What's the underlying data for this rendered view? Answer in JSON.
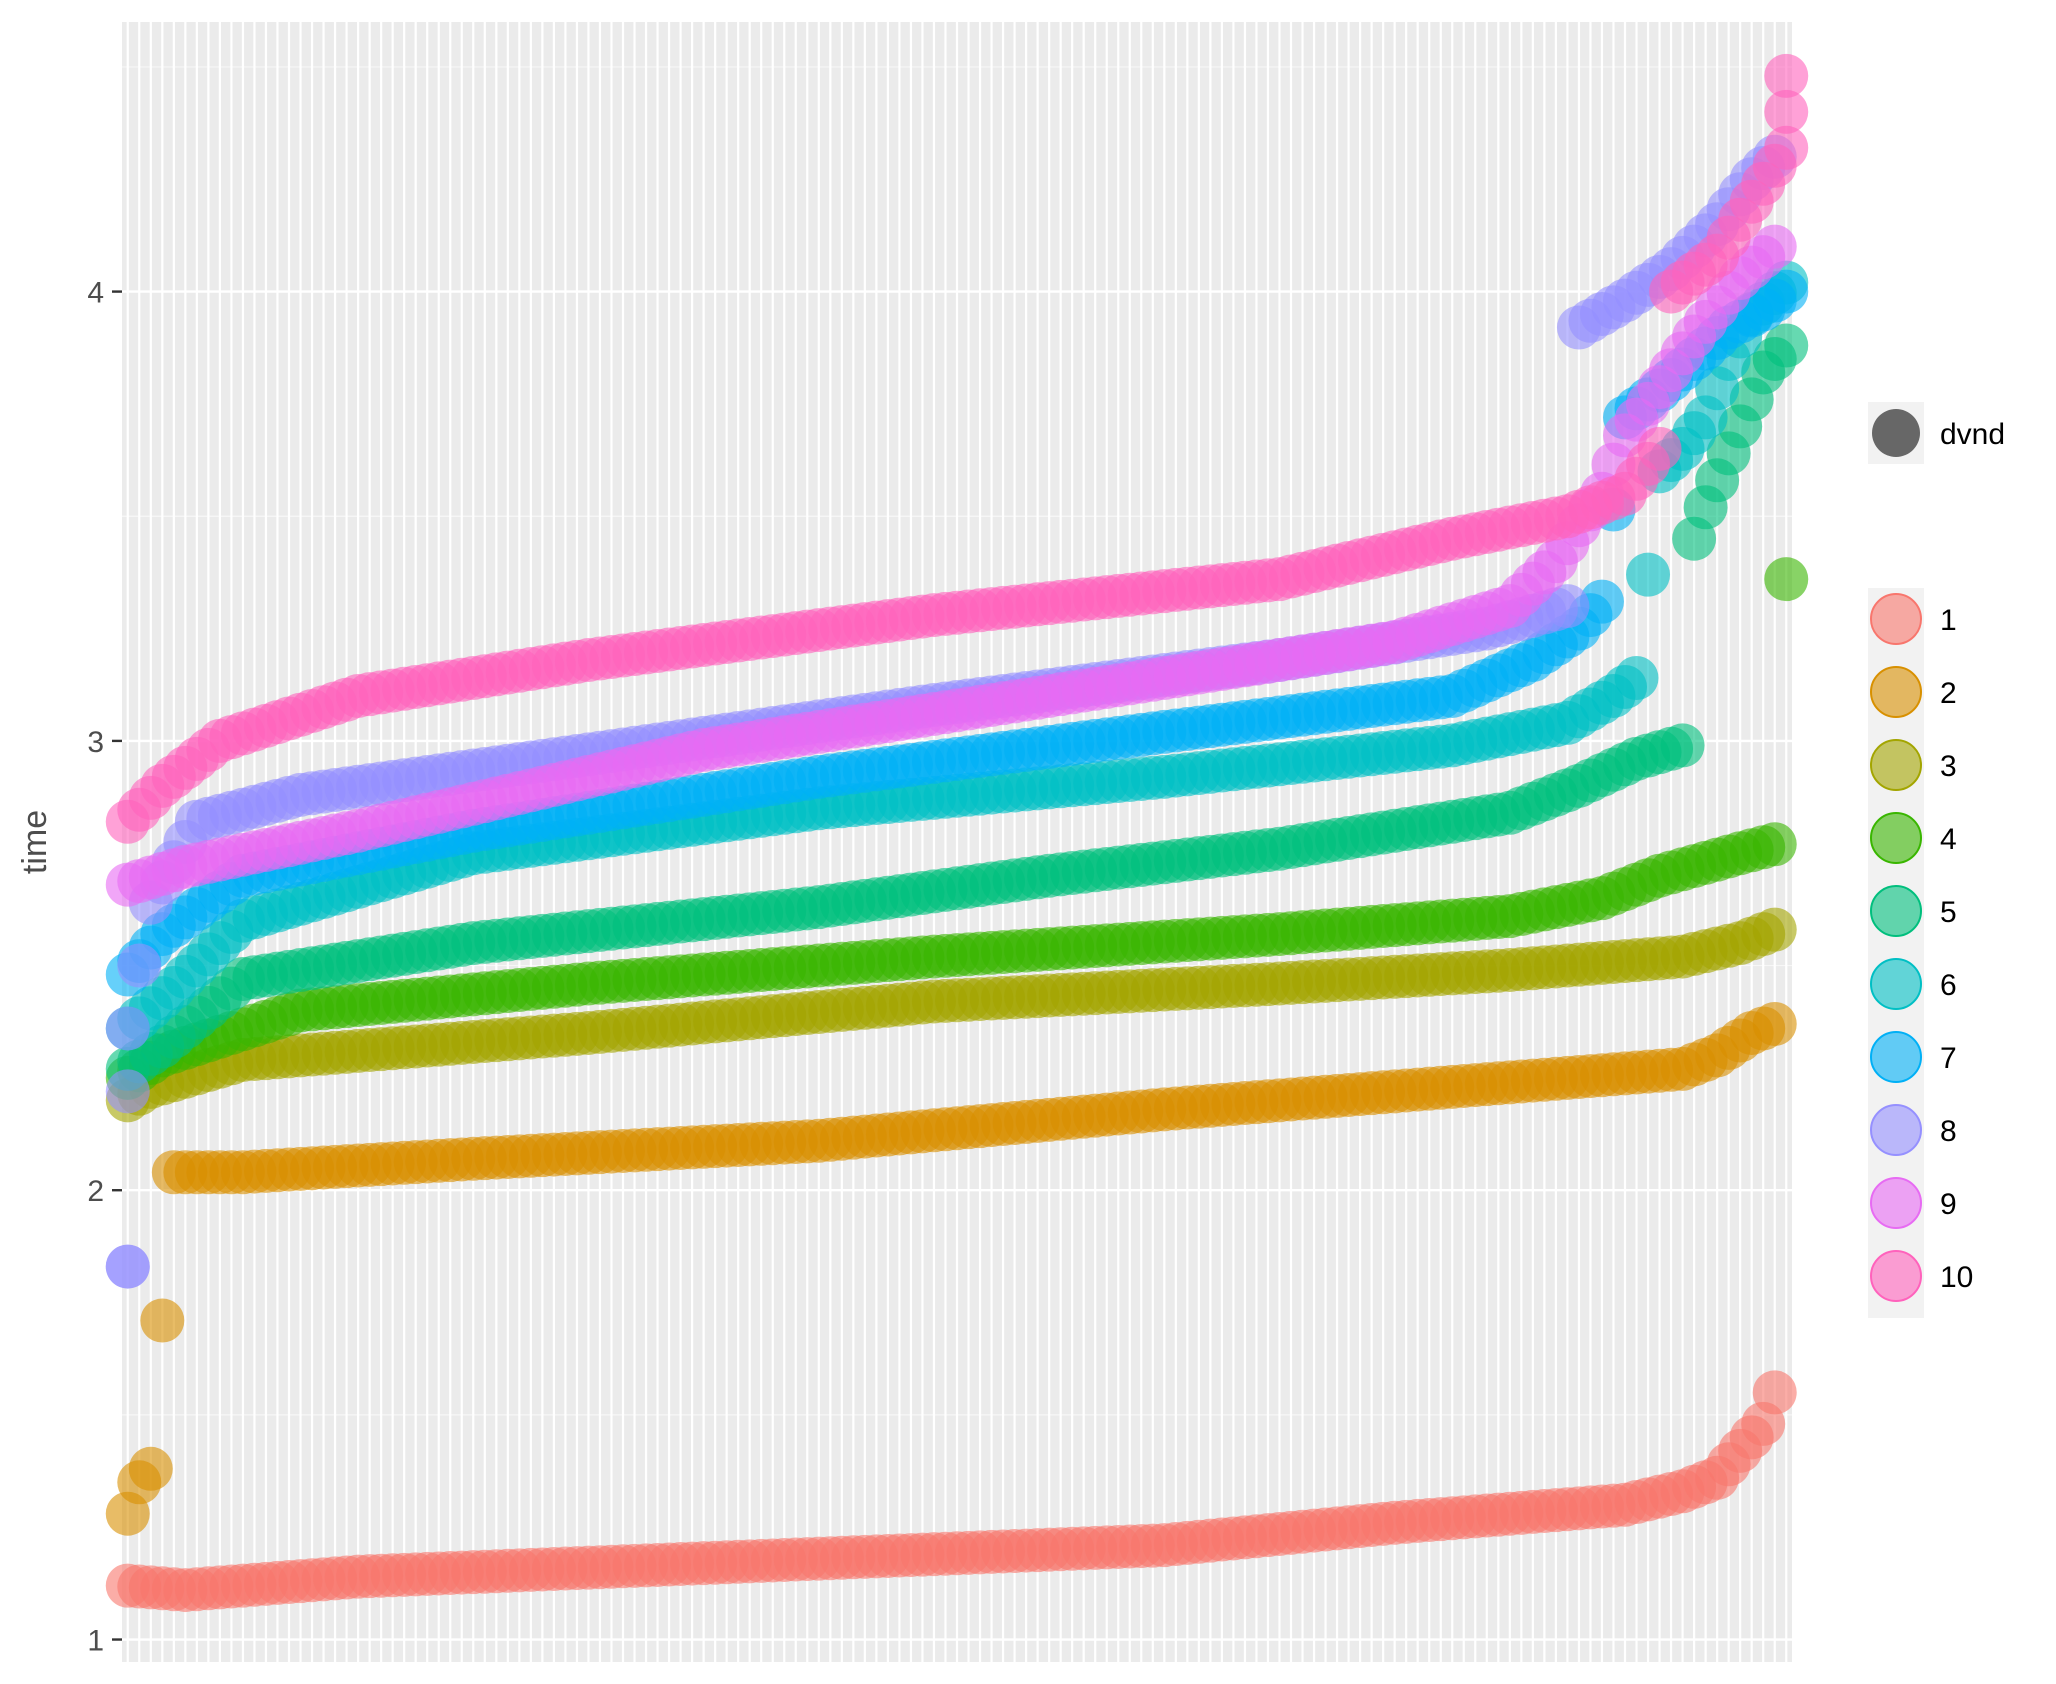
{
  "chart_data": {
    "type": "scatter",
    "title": "",
    "xlabel": "",
    "ylabel": "time",
    "x_count": 144,
    "ylim": [
      0.95,
      4.6
    ],
    "yticks": [
      1,
      2,
      3,
      4
    ],
    "grid": true,
    "legend_position": "right",
    "size_legend": {
      "label": "dvnd"
    },
    "series": [
      {
        "name": "1",
        "color": "#F8766D",
        "start": 0,
        "anchors": [
          [
            0,
            1.12
          ],
          [
            5,
            1.11
          ],
          [
            20,
            1.14
          ],
          [
            60,
            1.18
          ],
          [
            90,
            1.21
          ],
          [
            110,
            1.26
          ],
          [
            130,
            1.3
          ],
          [
            135,
            1.33
          ],
          [
            138,
            1.36
          ],
          [
            140,
            1.42
          ],
          [
            142,
            1.48
          ],
          [
            143,
            1.55
          ]
        ]
      },
      {
        "name": "2",
        "color": "#D89000",
        "start": 0,
        "anchors": [
          [
            0,
            1.28
          ],
          [
            1,
            1.35
          ],
          [
            2,
            1.38
          ],
          [
            4,
            2.04
          ],
          [
            10,
            2.04
          ],
          [
            30,
            2.07
          ],
          [
            60,
            2.11
          ],
          [
            90,
            2.18
          ],
          [
            120,
            2.24
          ],
          [
            135,
            2.27
          ],
          [
            138,
            2.3
          ],
          [
            141,
            2.35
          ],
          [
            143,
            2.37
          ]
        ]
      },
      {
        "name": "3",
        "color": "#A3A500",
        "start": 0,
        "anchors": [
          [
            0,
            2.2
          ],
          [
            2,
            2.23
          ],
          [
            10,
            2.29
          ],
          [
            40,
            2.35
          ],
          [
            70,
            2.42
          ],
          [
            100,
            2.46
          ],
          [
            120,
            2.49
          ],
          [
            135,
            2.52
          ],
          [
            140,
            2.55
          ],
          [
            143,
            2.58
          ]
        ]
      },
      {
        "name": "4",
        "color": "#39B600",
        "start": 0,
        "anchors": [
          [
            0,
            2.25
          ],
          [
            3,
            2.3
          ],
          [
            15,
            2.4
          ],
          [
            40,
            2.46
          ],
          [
            70,
            2.52
          ],
          [
            100,
            2.57
          ],
          [
            120,
            2.61
          ],
          [
            128,
            2.65
          ],
          [
            133,
            2.7
          ],
          [
            140,
            2.75
          ],
          [
            143,
            2.77
          ],
          [
            144,
            3.36
          ]
        ]
      },
      {
        "name": "5",
        "color": "#00BF7D",
        "start": 0,
        "anchors": [
          [
            0,
            2.27
          ],
          [
            3,
            2.32
          ],
          [
            10,
            2.47
          ],
          [
            30,
            2.55
          ],
          [
            60,
            2.63
          ],
          [
            80,
            2.7
          ],
          [
            100,
            2.76
          ],
          [
            120,
            2.84
          ],
          [
            126,
            2.9
          ],
          [
            131,
            2.96
          ],
          [
            135,
            2.99
          ],
          [
            136,
            3.45
          ],
          [
            137,
            3.52
          ],
          [
            138,
            3.58
          ],
          [
            140,
            3.7
          ],
          [
            142,
            3.82
          ],
          [
            144,
            3.88
          ]
        ]
      },
      {
        "name": "6",
        "color": "#00BFC4",
        "start": 0,
        "anchors": [
          [
            0,
            2.36
          ],
          [
            4,
            2.45
          ],
          [
            10,
            2.6
          ],
          [
            30,
            2.75
          ],
          [
            60,
            2.85
          ],
          [
            90,
            2.92
          ],
          [
            115,
            2.99
          ],
          [
            125,
            3.04
          ],
          [
            129,
            3.1
          ],
          [
            131,
            3.14
          ],
          [
            133,
            3.6
          ],
          [
            135,
            3.65
          ],
          [
            137,
            3.72
          ],
          [
            139,
            3.85
          ],
          [
            141,
            3.95
          ],
          [
            144,
            4.02
          ]
        ]
      },
      {
        "name": "7",
        "color": "#00B0F6",
        "start": 0,
        "anchors": [
          [
            0,
            2.48
          ],
          [
            3,
            2.57
          ],
          [
            10,
            2.7
          ],
          [
            30,
            2.8
          ],
          [
            60,
            2.92
          ],
          [
            90,
            3.02
          ],
          [
            115,
            3.1
          ],
          [
            122,
            3.18
          ],
          [
            126,
            3.25
          ],
          [
            128,
            3.31
          ],
          [
            130,
            3.72
          ],
          [
            133,
            3.78
          ],
          [
            136,
            3.85
          ],
          [
            139,
            3.92
          ],
          [
            142,
            3.96
          ],
          [
            144,
            4.0
          ]
        ]
      },
      {
        "name": "8",
        "color": "#9590FF",
        "start": 0,
        "anchors": [
          [
            0,
            1.83
          ],
          [
            0,
            2.22
          ],
          [
            0,
            2.36
          ],
          [
            2,
            2.64
          ],
          [
            6,
            2.82
          ],
          [
            15,
            2.88
          ],
          [
            40,
            2.97
          ],
          [
            70,
            3.08
          ],
          [
            100,
            3.18
          ],
          [
            118,
            3.25
          ],
          [
            125,
            3.3
          ],
          [
            126,
            3.92
          ],
          [
            130,
            3.98
          ],
          [
            134,
            4.05
          ],
          [
            138,
            4.15
          ],
          [
            141,
            4.25
          ],
          [
            143,
            4.3
          ]
        ]
      },
      {
        "name": "9",
        "color": "#E76BF3",
        "start": 0,
        "anchors": [
          [
            0,
            2.68
          ],
          [
            5,
            2.72
          ],
          [
            20,
            2.8
          ],
          [
            50,
            2.98
          ],
          [
            80,
            3.1
          ],
          [
            110,
            3.22
          ],
          [
            120,
            3.3
          ],
          [
            124,
            3.4
          ],
          [
            126,
            3.48
          ],
          [
            128,
            3.55
          ],
          [
            130,
            3.68
          ],
          [
            132,
            3.75
          ],
          [
            136,
            3.9
          ],
          [
            140,
            4.03
          ],
          [
            143,
            4.1
          ]
        ]
      },
      {
        "name": "10",
        "color": "#FF62BC",
        "start": 0,
        "anchors": [
          [
            0,
            2.82
          ],
          [
            3,
            2.9
          ],
          [
            8,
            3.0
          ],
          [
            20,
            3.1
          ],
          [
            40,
            3.18
          ],
          [
            70,
            3.28
          ],
          [
            100,
            3.36
          ],
          [
            115,
            3.45
          ],
          [
            125,
            3.5
          ],
          [
            130,
            3.55
          ],
          [
            133,
            3.65
          ],
          [
            134,
            4.0
          ],
          [
            138,
            4.08
          ],
          [
            141,
            4.2
          ],
          [
            144,
            4.32
          ],
          [
            144,
            4.4
          ],
          [
            144,
            4.48
          ]
        ]
      }
    ]
  }
}
